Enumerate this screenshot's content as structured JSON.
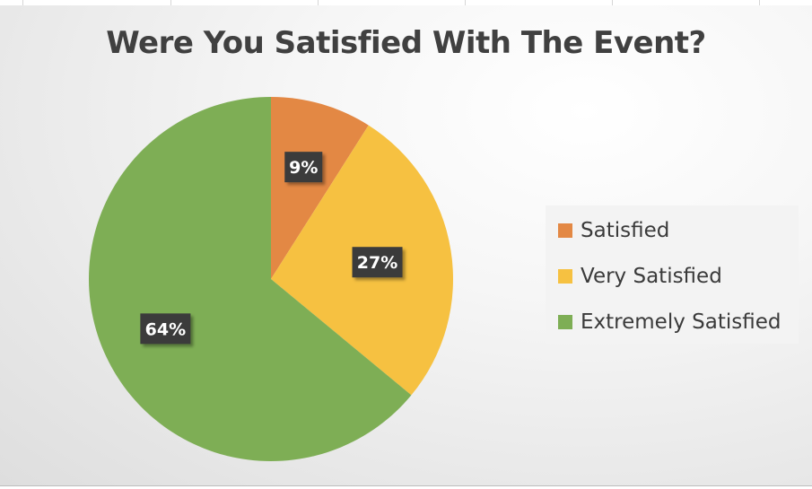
{
  "chart_data": {
    "type": "pie",
    "title": "Were You Satisfied With The Event?",
    "categories": [
      "Satisfied",
      "Very Satisfied",
      "Extremely Satisfied"
    ],
    "values": [
      9,
      27,
      64
    ],
    "data_labels": [
      "9%",
      "27%",
      "64%"
    ],
    "colors": [
      "#E38844",
      "#F6C141",
      "#7EAE55"
    ],
    "legend_position": "right",
    "start_angle": "12 o'clock",
    "direction": "clockwise"
  }
}
